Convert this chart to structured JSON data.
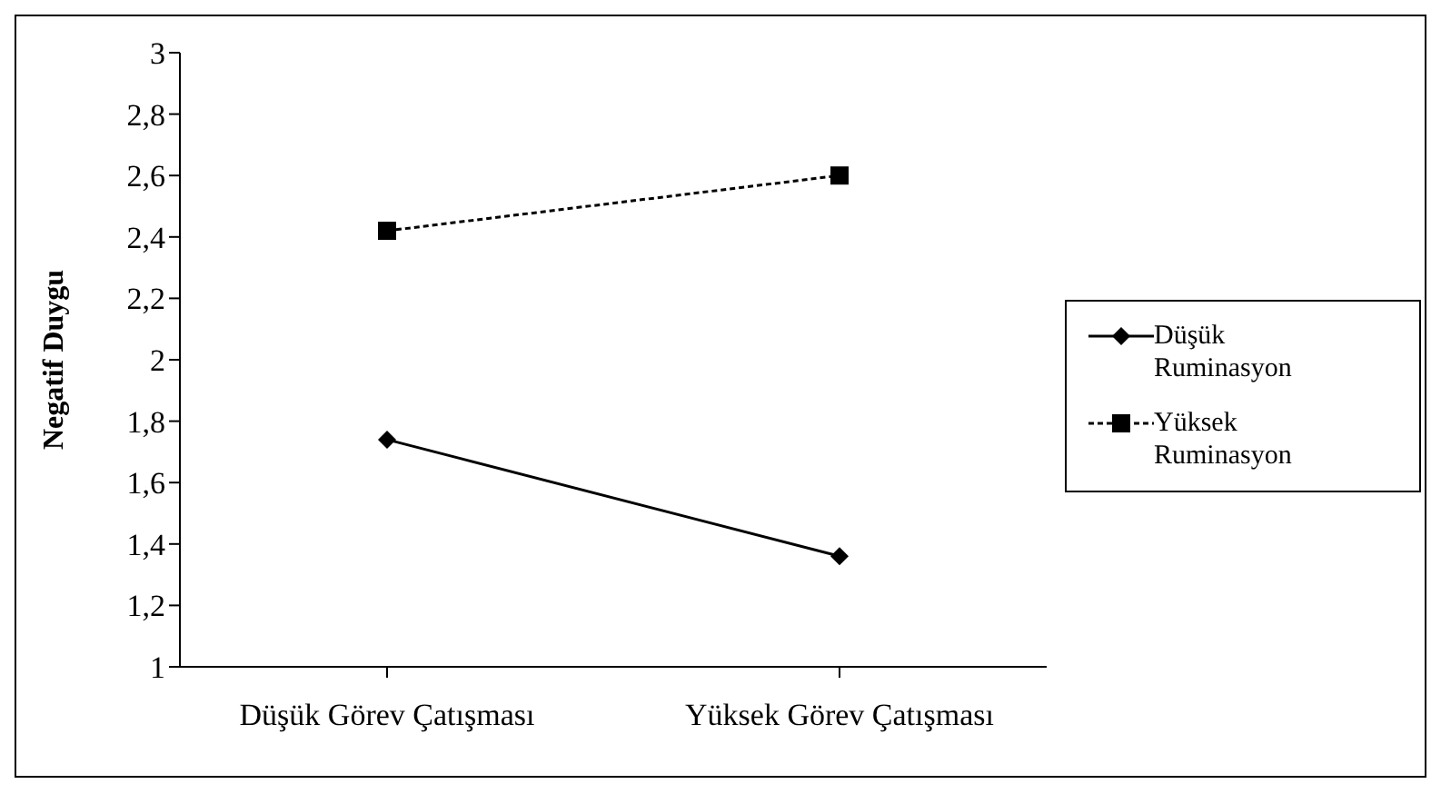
{
  "chart_data": {
    "type": "line",
    "ylabel": "Negatif Duygu",
    "categories": [
      "Düşük Görev Çatışması",
      "Yüksek Görev Çatışması"
    ],
    "series": [
      {
        "name": "Düşük Ruminasyon",
        "color": "#000000",
        "values": [
          1.74,
          1.36
        ],
        "marker": "diamond",
        "line_style": "solid"
      },
      {
        "name": "Yüksek Ruminasyon",
        "color": "#000000",
        "values": [
          2.42,
          2.6
        ],
        "marker": "square",
        "line_style": "dashed"
      }
    ],
    "ylim": [
      1,
      3
    ],
    "yticks": [
      1,
      {
        "value": 1.2,
        "label": "1,2"
      },
      {
        "value": 1.4,
        "label": "1,4"
      },
      {
        "value": 1.6,
        "label": "1,6"
      },
      {
        "value": 1.8,
        "label": "1,8"
      },
      2,
      {
        "value": 2.2,
        "label": "2,2"
      },
      {
        "value": 2.4,
        "label": "2,4"
      },
      {
        "value": 2.6,
        "label": "2,6"
      },
      {
        "value": 2.8,
        "label": "2,8"
      },
      3
    ],
    "grid": false,
    "legend": "right"
  }
}
